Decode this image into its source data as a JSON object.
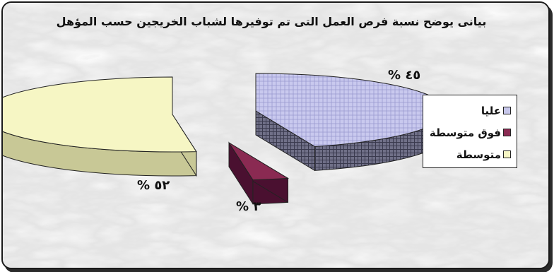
{
  "chart_data": {
    "type": "pie",
    "title": "بيانى يوضح نسبة فرص العمل التى تم توفيرها لشباب الخريجين حسب المؤهل",
    "slices": [
      {
        "name": "عليا",
        "value": 45,
        "label": "% ٤٥",
        "color": "#c6c6ea"
      },
      {
        "name": "فوق متوسطة",
        "value": 3,
        "label": "% ٣",
        "color": "#8a2a52"
      },
      {
        "name": "متوسطة",
        "value": 52,
        "label": "% ٥٢",
        "color": "#f6f6c4"
      }
    ],
    "legend_position": "right"
  }
}
